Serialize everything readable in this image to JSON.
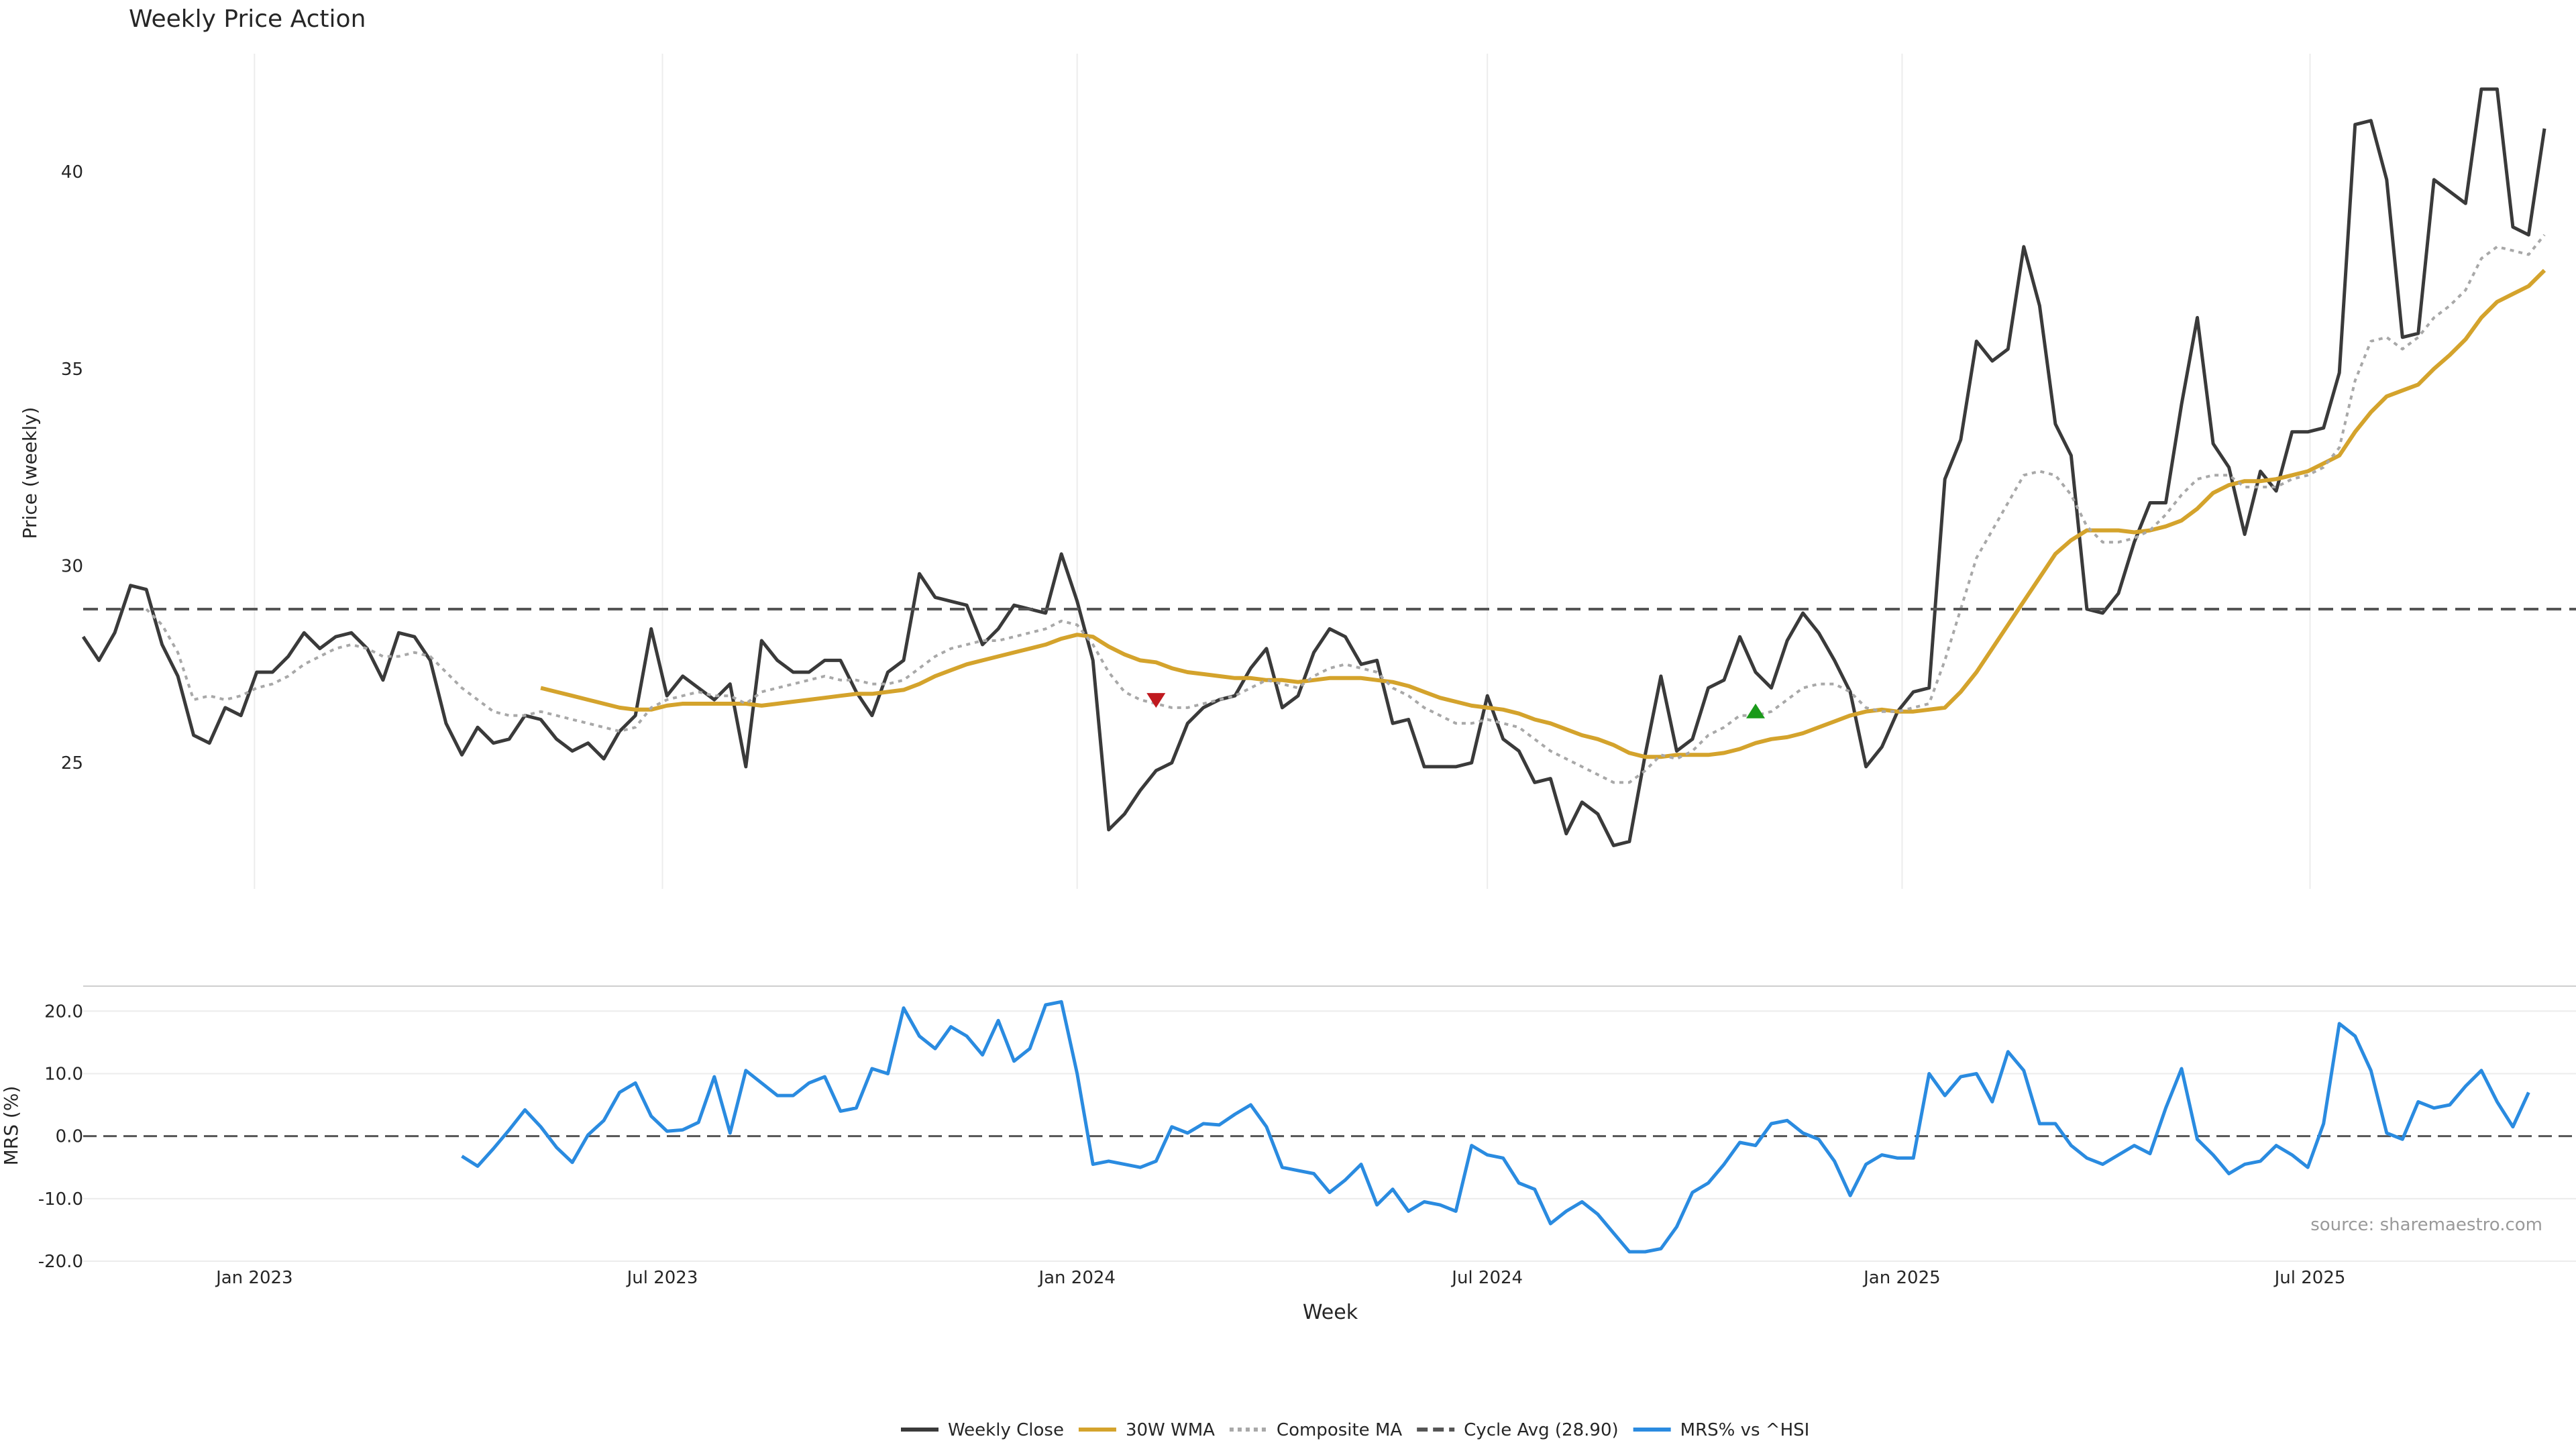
{
  "title": "Weekly Price Action",
  "source_note": "source: sharemaestro.com",
  "colors": {
    "weekly_close": "#3a3a3a",
    "wma30": "#d4a32c",
    "composite_ma": "#a8a8a8",
    "cycle_avg": "#555555",
    "mrs": "#2a8be0",
    "marker_down": "#c0191f",
    "marker_up": "#1a9a1a",
    "grid": "#ececec"
  },
  "legend": [
    {
      "label": "Weekly Close",
      "style": "solid",
      "color": "#3a3a3a"
    },
    {
      "label": "30W WMA",
      "style": "solid",
      "color": "#d4a32c"
    },
    {
      "label": "Composite MA",
      "style": "dotted",
      "color": "#a8a8a8"
    },
    {
      "label": "Cycle Avg (28.90)",
      "style": "dashed",
      "color": "#555555"
    },
    {
      "label": "MRS% vs ^HSI",
      "style": "solid",
      "color": "#2a8be0"
    }
  ],
  "chart_data": [
    {
      "type": "line",
      "panel": "price",
      "title": "Weekly Price Action",
      "ylabel": "Price (weekly)",
      "xlabel": "",
      "ylim": [
        21.8,
        43.0
      ],
      "xlim": [
        "2022-10-17",
        "2025-10-27"
      ],
      "yticks": [
        25,
        30,
        35,
        40
      ],
      "x_tick_dates": [
        "2023-01-01",
        "2023-07-01",
        "2024-01-01",
        "2024-07-01",
        "2025-01-01",
        "2025-07-01"
      ],
      "x_tick_labels": [
        "Jan 2023",
        "Jul 2023",
        "Jan 2024",
        "Jul 2024",
        "Jan 2025",
        "Jul 2025"
      ],
      "grid": "vertical",
      "x_start": "2022-10-17",
      "x_step_days": 7,
      "series": [
        {
          "name": "Weekly Close",
          "values": [
            28.2,
            27.6,
            28.3,
            29.5,
            29.4,
            28.0,
            27.2,
            25.7,
            25.5,
            26.4,
            26.2,
            27.3,
            27.3,
            27.7,
            28.3,
            27.9,
            28.2,
            28.3,
            27.9,
            27.1,
            28.3,
            28.2,
            27.6,
            26.0,
            25.2,
            25.9,
            25.5,
            25.6,
            26.2,
            26.1,
            25.6,
            25.3,
            25.5,
            25.1,
            25.8,
            26.2,
            28.4,
            26.7,
            27.2,
            26.9,
            26.6,
            27.0,
            24.9,
            28.1,
            27.6,
            27.3,
            27.3,
            27.6,
            27.6,
            26.8,
            26.2,
            27.3,
            27.6,
            29.8,
            29.2,
            29.1,
            29.0,
            28.0,
            28.4,
            29.0,
            28.9,
            28.8,
            30.3,
            29.1,
            27.6,
            23.3,
            23.7,
            24.3,
            24.8,
            25.0,
            26.0,
            26.4,
            26.6,
            26.7,
            27.4,
            27.9,
            26.4,
            26.7,
            27.8,
            28.4,
            28.2,
            27.5,
            27.6,
            26.0,
            26.1,
            24.9,
            24.9,
            24.9,
            25.0,
            26.7,
            25.6,
            25.3,
            24.5,
            24.6,
            23.2,
            24.0,
            23.7,
            22.9,
            23.0,
            25.2,
            27.2,
            25.3,
            25.6,
            26.9,
            27.1,
            28.2,
            27.3,
            26.9,
            28.1,
            28.8,
            28.3,
            27.6,
            26.8,
            24.9,
            25.4,
            26.3,
            26.8,
            26.9,
            32.2,
            33.2,
            35.7,
            35.2,
            35.5,
            38.1,
            36.6,
            33.6,
            32.8,
            28.9,
            28.8,
            29.3,
            30.6,
            31.6,
            31.6,
            34.1,
            36.3,
            33.1,
            32.5,
            30.8,
            32.4,
            31.9,
            33.4,
            33.4,
            33.5,
            34.9,
            41.2,
            41.3,
            39.8,
            35.8,
            35.9,
            39.8,
            39.5,
            39.2,
            42.1,
            42.1,
            38.6,
            38.4,
            41.1
          ]
        },
        {
          "name": "30W WMA",
          "start_index": 29,
          "values": [
            26.9,
            26.8,
            26.7,
            26.6,
            26.5,
            26.4,
            26.35,
            26.35,
            26.45,
            26.5,
            26.5,
            26.5,
            26.5,
            26.5,
            26.45,
            26.5,
            26.55,
            26.6,
            26.65,
            26.7,
            26.75,
            26.75,
            26.8,
            26.85,
            27.0,
            27.2,
            27.35,
            27.5,
            27.6,
            27.7,
            27.8,
            27.9,
            28.0,
            28.15,
            28.25,
            28.2,
            27.95,
            27.75,
            27.6,
            27.55,
            27.4,
            27.3,
            27.25,
            27.2,
            27.15,
            27.15,
            27.1,
            27.1,
            27.05,
            27.1,
            27.15,
            27.15,
            27.15,
            27.1,
            27.05,
            26.95,
            26.8,
            26.65,
            26.55,
            26.45,
            26.4,
            26.35,
            26.25,
            26.1,
            26.0,
            25.85,
            25.7,
            25.6,
            25.45,
            25.25,
            25.15,
            25.15,
            25.2,
            25.2,
            25.2,
            25.25,
            25.35,
            25.5,
            25.6,
            25.65,
            25.75,
            25.9,
            26.05,
            26.2,
            26.3,
            26.35,
            26.3,
            26.3,
            26.35,
            26.4,
            26.8,
            27.3,
            27.9,
            28.5,
            29.1,
            29.7,
            30.3,
            30.65,
            30.9,
            30.9,
            30.9,
            30.85,
            30.9,
            31.0,
            31.15,
            31.45,
            31.85,
            32.05,
            32.15,
            32.15,
            32.2,
            32.3,
            32.4,
            32.6,
            32.8,
            33.4,
            33.9,
            34.3,
            34.45,
            34.6,
            35.0,
            35.35,
            35.75,
            36.3,
            36.7,
            36.9,
            37.1,
            37.5
          ]
        },
        {
          "name": "Composite MA",
          "style": "dotted",
          "values": [
            null,
            null,
            null,
            null,
            28.9,
            28.5,
            27.8,
            26.6,
            26.7,
            26.6,
            26.7,
            26.9,
            27.0,
            27.2,
            27.5,
            27.7,
            27.9,
            28.0,
            27.9,
            27.7,
            27.7,
            27.8,
            27.7,
            27.3,
            26.9,
            26.6,
            26.3,
            26.2,
            26.2,
            26.3,
            26.2,
            26.1,
            26.0,
            25.9,
            25.8,
            25.9,
            26.4,
            26.6,
            26.7,
            26.8,
            26.7,
            26.7,
            26.5,
            26.8,
            26.9,
            27.0,
            27.1,
            27.2,
            27.1,
            27.1,
            27.0,
            27.0,
            27.1,
            27.4,
            27.7,
            27.9,
            28.0,
            28.1,
            28.1,
            28.2,
            28.3,
            28.4,
            28.6,
            28.5,
            28.0,
            27.3,
            26.8,
            26.6,
            26.5,
            26.4,
            26.4,
            26.5,
            26.6,
            26.7,
            26.9,
            27.1,
            27.0,
            26.9,
            27.2,
            27.4,
            27.5,
            27.4,
            27.3,
            26.9,
            26.7,
            26.4,
            26.2,
            26.0,
            26.0,
            26.1,
            26.0,
            25.9,
            25.6,
            25.3,
            25.1,
            24.9,
            24.7,
            24.5,
            24.5,
            24.8,
            25.2,
            25.1,
            25.3,
            25.7,
            25.9,
            26.2,
            26.2,
            26.3,
            26.6,
            26.9,
            27.0,
            27.0,
            26.8,
            26.4,
            26.3,
            26.3,
            26.4,
            26.5,
            27.6,
            28.9,
            30.2,
            30.9,
            31.6,
            32.3,
            32.4,
            32.3,
            31.8,
            31.0,
            30.6,
            30.6,
            30.7,
            30.9,
            31.3,
            31.8,
            32.2,
            32.3,
            32.3,
            32.0,
            32.0,
            32.0,
            32.2,
            32.3,
            32.5,
            33.0,
            34.7,
            35.7,
            35.8,
            35.5,
            35.8,
            36.3,
            36.6,
            37.0,
            37.8,
            38.1,
            38.0,
            37.9,
            38.4
          ]
        },
        {
          "name": "Cycle Avg (28.90)",
          "style": "dashed",
          "constant": 28.9
        }
      ],
      "annotations": [
        {
          "type": "marker-down",
          "x_index": 68,
          "y": 26.6
        },
        {
          "type": "marker-up",
          "x_index": 106,
          "y": 26.3
        }
      ]
    },
    {
      "type": "line",
      "panel": "mrs",
      "xlabel": "Week",
      "ylabel": "MRS (%)",
      "ylim": [
        -20.0,
        24.0
      ],
      "yticks": [
        20.0,
        10.0,
        0.0,
        -10.0,
        -20.0
      ],
      "ytick_labels": [
        "20.0",
        "10.0",
        "0.0",
        "-10.0",
        "-20.0"
      ],
      "x_tick_dates": [
        "2023-01-01",
        "2023-07-01",
        "2024-01-01",
        "2024-07-01",
        "2025-01-01",
        "2025-07-01"
      ],
      "x_tick_labels": [
        "Jan 2023",
        "Jul 2023",
        "Jan 2024",
        "Jul 2024",
        "Jan 2025",
        "Jul 2025"
      ],
      "grid": "horizontal",
      "zero_line": 0.0,
      "series": [
        {
          "name": "MRS% vs ^HSI",
          "start_index": 24,
          "values": [
            -3.2,
            -4.8,
            -2.0,
            1.0,
            4.2,
            1.5,
            -1.8,
            -4.2,
            0.2,
            2.5,
            7.0,
            8.5,
            3.2,
            0.8,
            1.0,
            2.2,
            9.5,
            0.5,
            10.5,
            8.5,
            6.5,
            6.5,
            8.5,
            9.5,
            4.0,
            4.5,
            10.8,
            10.0,
            20.5,
            16.0,
            14.0,
            17.5,
            16.0,
            13.0,
            18.5,
            12.0,
            14.0,
            21.0,
            21.5,
            10.0,
            -4.5,
            -4.0,
            -4.5,
            -5.0,
            -4.0,
            1.5,
            0.5,
            2.0,
            1.8,
            3.5,
            5.0,
            1.5,
            -5.0,
            -5.5,
            -6.0,
            -9.0,
            -7.0,
            -4.5,
            -11.0,
            -8.5,
            -12.0,
            -10.5,
            -11.0,
            -12.0,
            -1.5,
            -3.0,
            -3.5,
            -7.5,
            -8.5,
            -14.0,
            -12.0,
            -10.5,
            -12.5,
            -15.5,
            -18.5,
            -18.5,
            -18.0,
            -14.5,
            -9.0,
            -7.5,
            -4.5,
            -1.0,
            -1.5,
            2.0,
            2.5,
            0.5,
            -0.5,
            -4.0,
            -9.5,
            -4.5,
            -3.0,
            -3.5,
            -3.5,
            10.0,
            6.5,
            9.5,
            10.0,
            5.5,
            13.5,
            10.5,
            2.0,
            2.0,
            -1.5,
            -3.5,
            -4.5,
            -3.0,
            -1.5,
            -2.8,
            4.5,
            10.8,
            -0.5,
            -3.0,
            -6.0,
            -4.5,
            -4.0,
            -1.5,
            -3.0,
            -5.0,
            2.0,
            18.0,
            16.0,
            10.5,
            0.5,
            -0.5,
            5.5,
            4.5,
            5.0,
            8.0,
            10.5,
            5.5,
            1.5,
            7.0
          ]
        }
      ]
    }
  ]
}
